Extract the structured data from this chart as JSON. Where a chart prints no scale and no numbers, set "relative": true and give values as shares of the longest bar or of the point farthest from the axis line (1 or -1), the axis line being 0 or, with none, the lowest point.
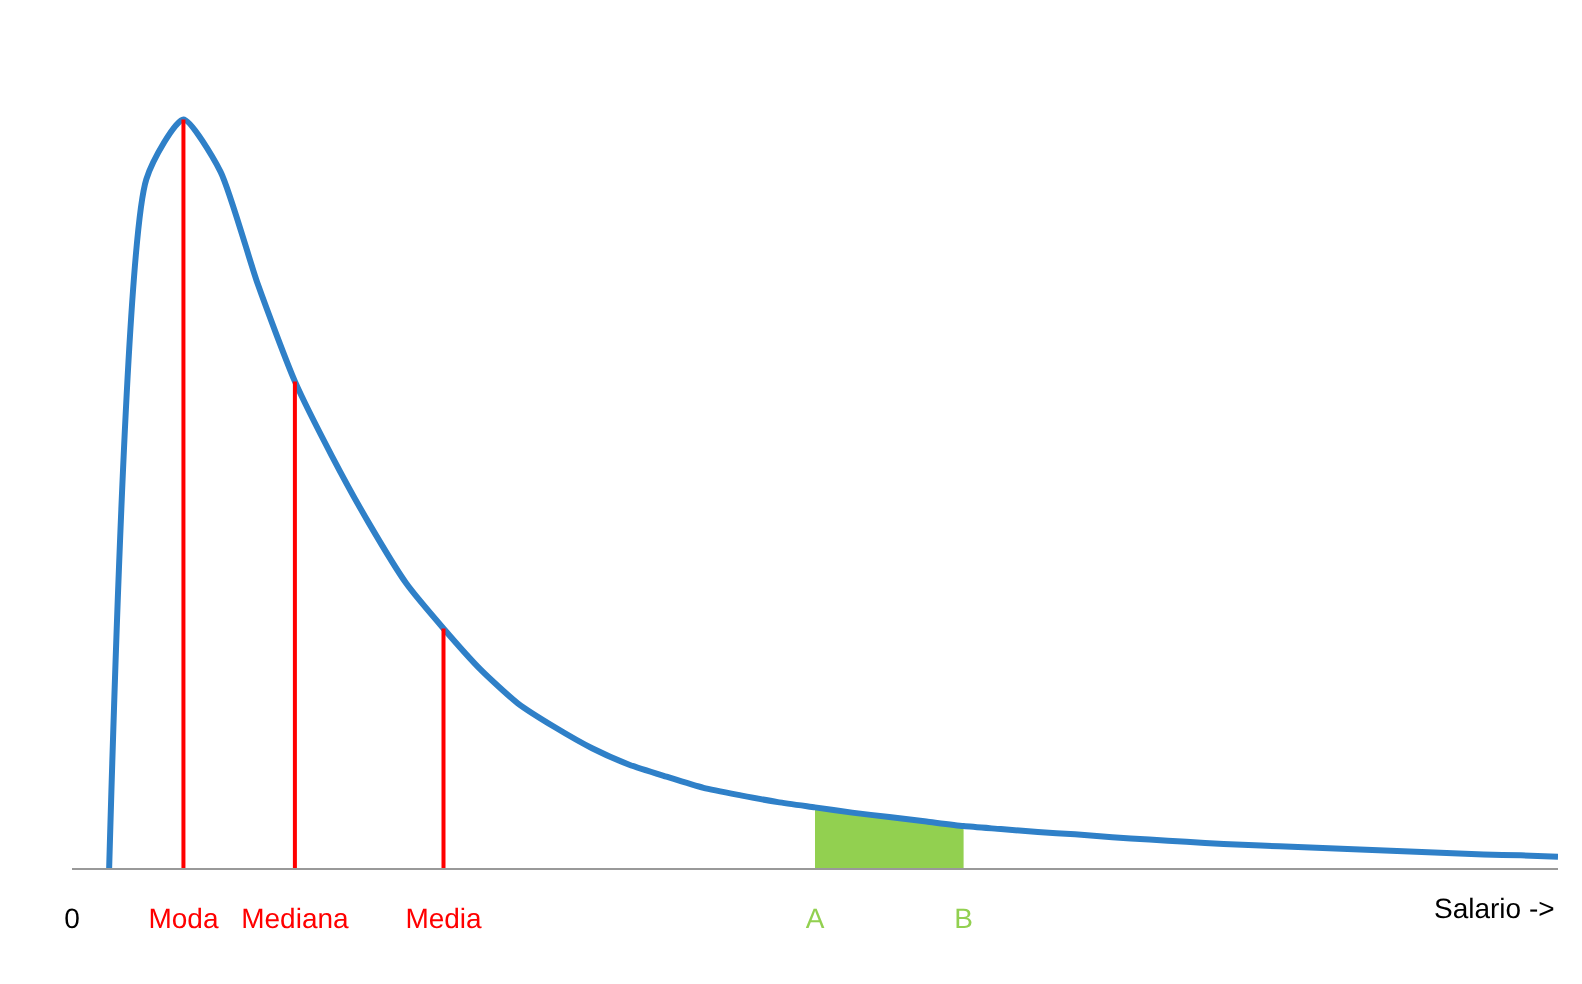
{
  "chart_data": {
    "type": "line",
    "relative": true,
    "xlabel": "Salario ->",
    "categories": [
      "0",
      null,
      null,
      "Moda",
      null,
      null,
      "Mediana",
      null,
      null,
      null,
      "Media",
      null,
      null,
      null,
      null,
      null,
      null,
      null,
      null,
      null,
      "A",
      null,
      null,
      null,
      "B",
      null,
      null,
      null,
      null,
      null,
      null,
      null,
      null,
      null,
      null,
      null,
      null,
      null,
      null,
      null,
      null
    ],
    "series": [
      {
        "type": "area",
        "color": "#92d050",
        "values": [
          null,
          null,
          null,
          null,
          null,
          null,
          null,
          null,
          null,
          null,
          null,
          null,
          null,
          null,
          null,
          null,
          null,
          null,
          null,
          null,
          0.081,
          0.074,
          0.068,
          0.062,
          0.056,
          null,
          null,
          null,
          null,
          null,
          null,
          null,
          null,
          null,
          null,
          null,
          null,
          null,
          null,
          null,
          null
        ]
      },
      {
        "color": "#2f80c8",
        "values": [
          null,
          0,
          0.92,
          1,
          0.93,
          0.78,
          0.65,
          0.55,
          0.46,
          0.38,
          0.32,
          0.265,
          0.22,
          0.188,
          0.16,
          0.138,
          0.122,
          0.107,
          0.097,
          0.088,
          0.081,
          0.074,
          0.068,
          0.062,
          0.056,
          0.052,
          0.048,
          0.045,
          0.041,
          0.038,
          0.035,
          0.032,
          0.03,
          0.028,
          0.026,
          0.024,
          0.022,
          0.02,
          0.018,
          0.017,
          0.015
        ]
      }
    ],
    "ref_lines": [
      {
        "axis": "x",
        "value": "Moda",
        "color": "#ff0000"
      },
      {
        "axis": "x",
        "value": "Mediana",
        "color": "#ff0000"
      },
      {
        "axis": "x",
        "value": "Media",
        "color": "#ff0000"
      }
    ],
    "marker": "none",
    "line_style": "solid"
  }
}
